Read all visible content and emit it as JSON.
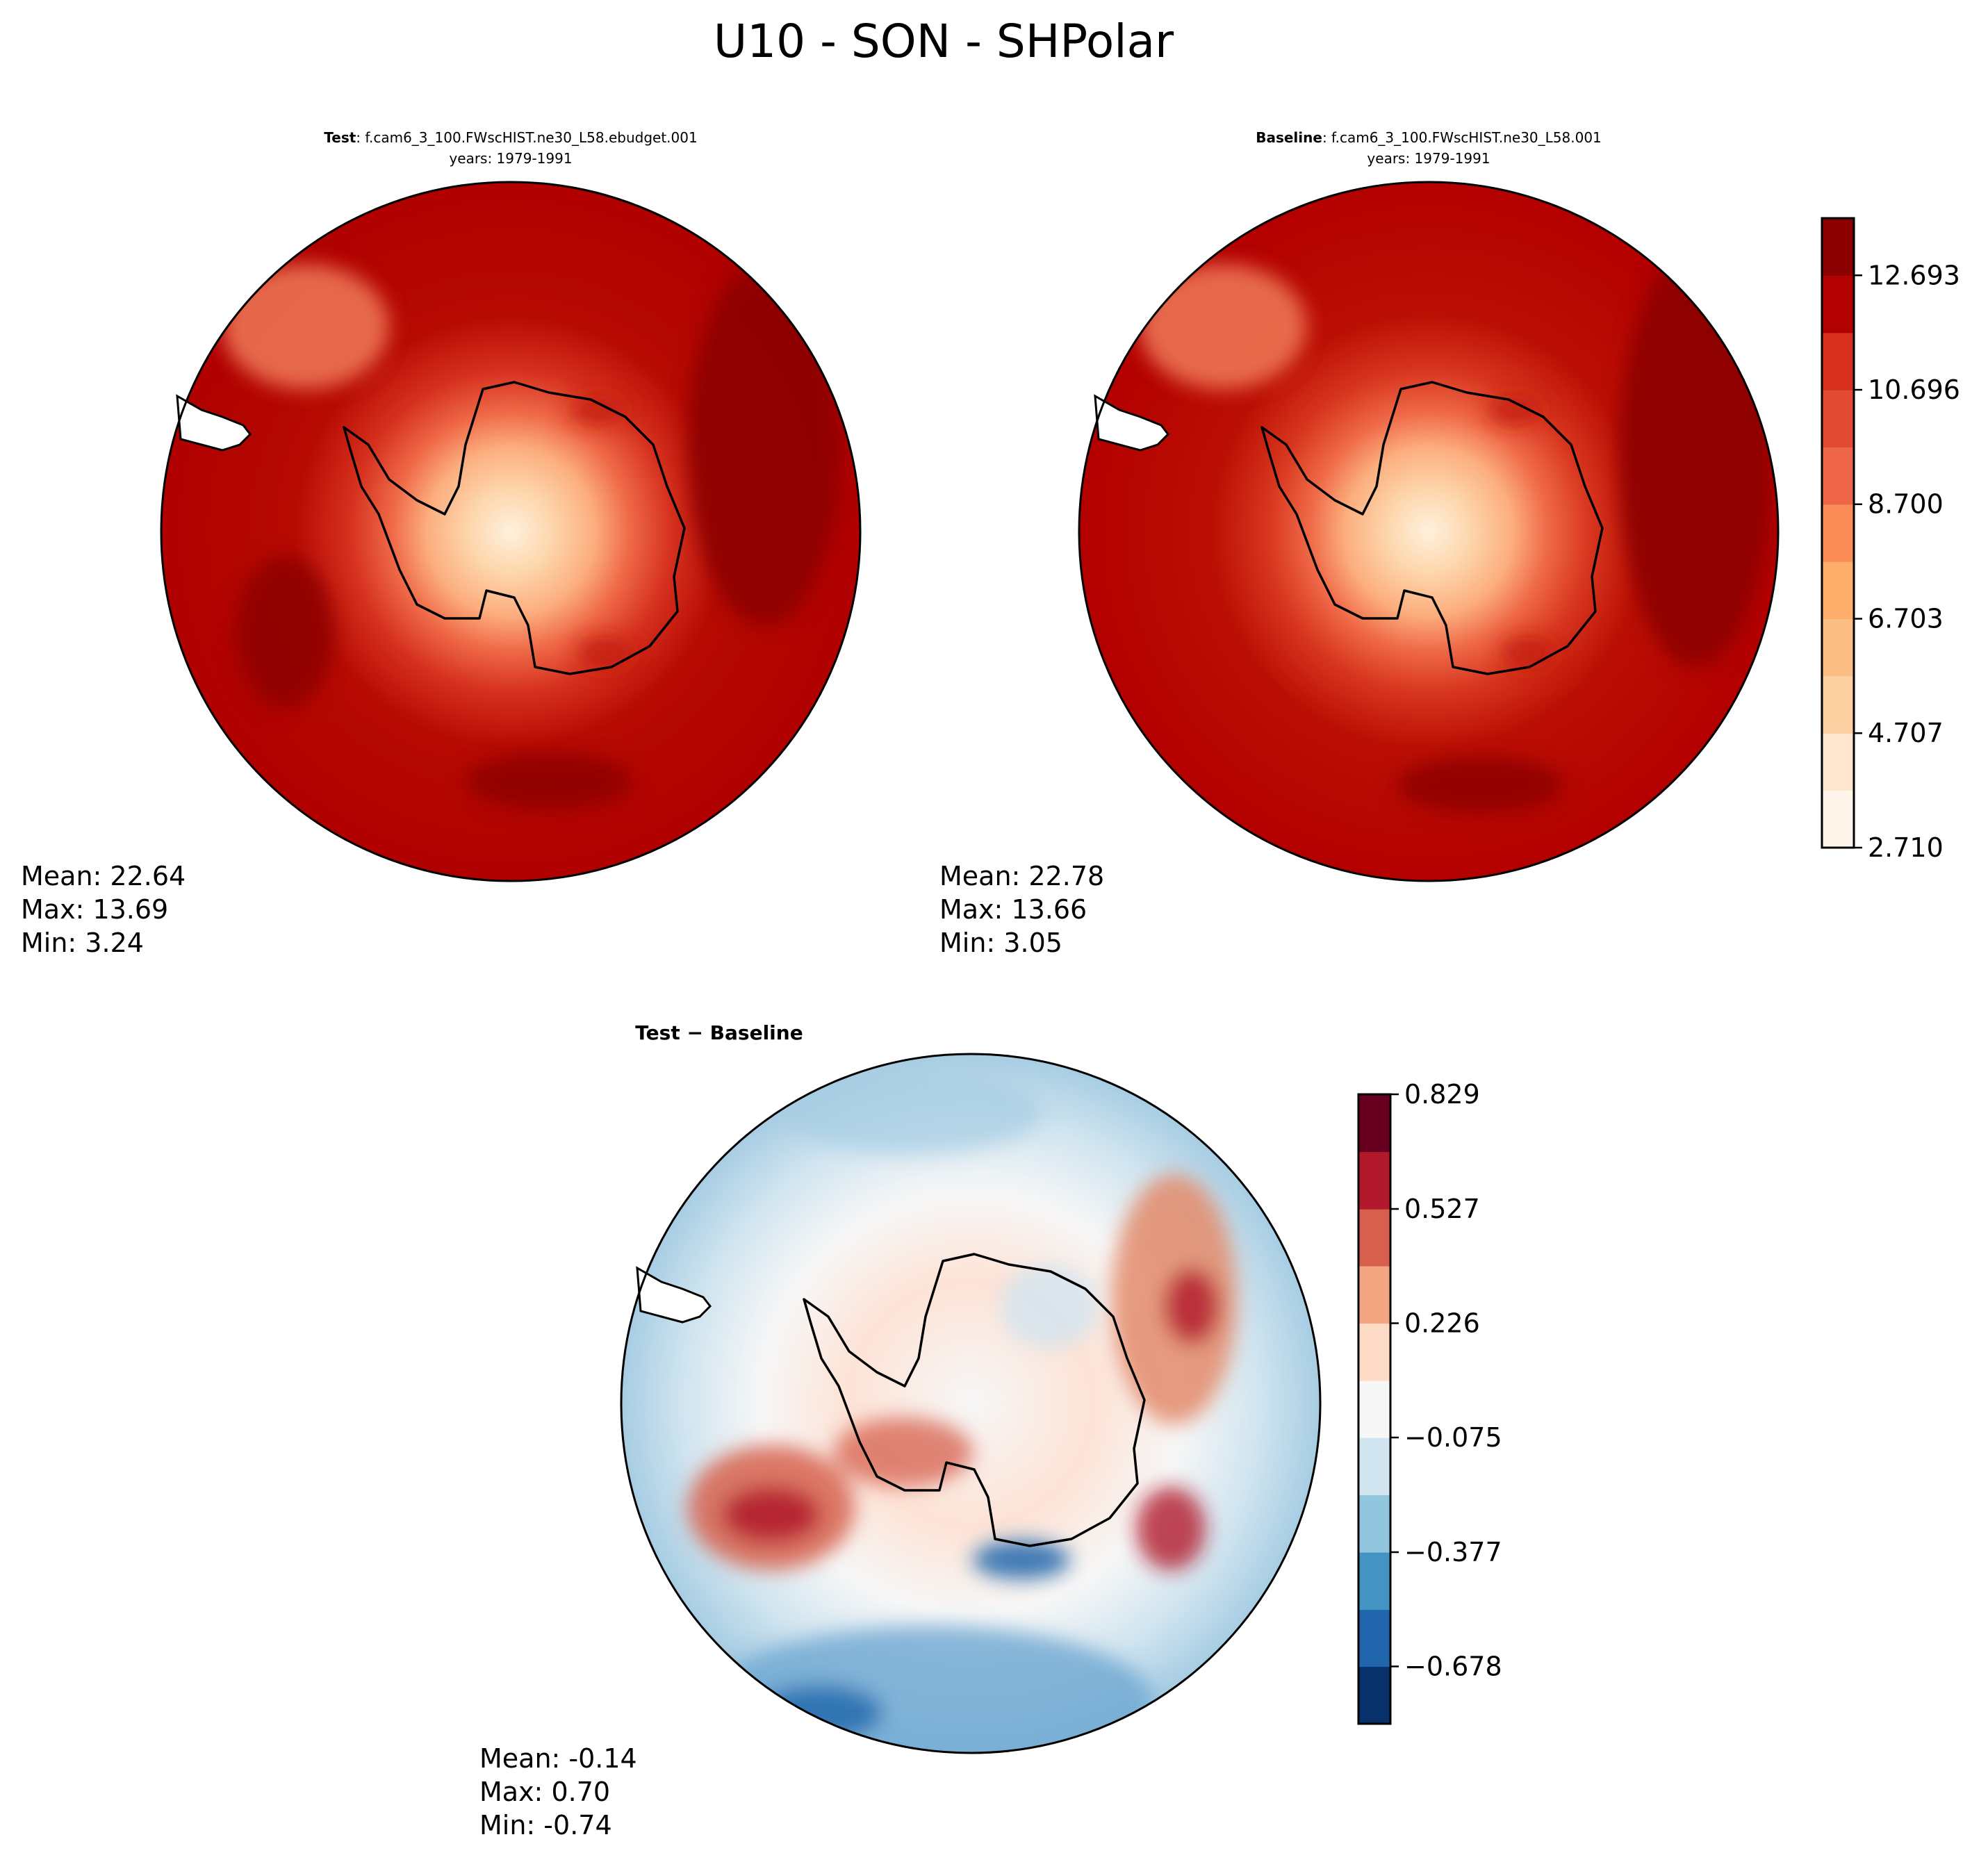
{
  "figure": {
    "title": "U10 - SON - SHPolar"
  },
  "panels": {
    "test": {
      "title_bold": "Test",
      "title_case": ": f.cam6_3_100.FWscHIST.ne30_L58.ebudget.001",
      "years": "years: 1979-1991",
      "stats": {
        "mean": "Mean: 22.64",
        "max": "Max: 13.69",
        "min": "Min:  3.24"
      }
    },
    "baseline": {
      "title_bold": "Baseline",
      "title_case": ": f.cam6_3_100.FWscHIST.ne30_L58.001",
      "years": "years: 1979-1991",
      "stats": {
        "mean": "Mean: 22.78",
        "max": "Max: 13.66",
        "min": "Min:  3.05"
      }
    },
    "diff": {
      "title": "Test − Baseline",
      "stats": {
        "mean": "Mean: -0.14",
        "max": "Max:  0.70",
        "min": "Min: -0.74"
      }
    }
  },
  "chart_data": [
    {
      "type": "heatmap",
      "projection": "south-polar-stereographic",
      "title": "Test : f.cam6_3_100.FWscHIST.ne30_L58.ebudget.001",
      "subtitle": "years: 1979-1991",
      "variable": "U10",
      "season": "SON",
      "stats": {
        "mean": 22.64,
        "max": 13.69,
        "min": 3.24
      },
      "colormap": "Reds",
      "colorbar": "shared-with-baseline"
    },
    {
      "type": "heatmap",
      "projection": "south-polar-stereographic",
      "title": "Baseline : f.cam6_3_100.FWscHIST.ne30_L58.001",
      "subtitle": "years: 1979-1991",
      "variable": "U10",
      "season": "SON",
      "stats": {
        "mean": 22.78,
        "max": 13.66,
        "min": 3.05
      },
      "colormap": "Reds",
      "colorbar": {
        "range": [
          2.71,
          13.69
        ],
        "boundaries": [
          2.71,
          3.709,
          4.707,
          5.705,
          6.703,
          7.702,
          8.7,
          9.698,
          10.696,
          11.694,
          12.693,
          13.691
        ],
        "tick_values": [
          2.71,
          4.707,
          6.703,
          8.7,
          10.696,
          12.693
        ],
        "tick_labels": [
          "2.710",
          "4.707",
          "6.703",
          "8.700",
          "10.696",
          "12.693"
        ],
        "colors": [
          "#fff5eb",
          "#fee6ce",
          "#fdd0a2",
          "#fdbe85",
          "#fdae6b",
          "#fc8d59",
          "#ef6548",
          "#e34a33",
          "#d7301f",
          "#b30000",
          "#8b0000"
        ]
      }
    },
    {
      "type": "heatmap",
      "projection": "south-polar-stereographic",
      "title": "Test − Baseline",
      "stats": {
        "mean": -0.14,
        "max": 0.7,
        "min": -0.74
      },
      "colormap": "RdBu_r",
      "colorbar": {
        "range": [
          -0.829,
          0.829
        ],
        "boundaries": [
          -0.829,
          -0.678,
          -0.528,
          -0.377,
          -0.226,
          -0.075,
          0.075,
          0.226,
          0.377,
          0.527,
          0.678,
          0.829
        ],
        "tick_values": [
          -0.678,
          -0.377,
          -0.075,
          0.226,
          0.527,
          0.829
        ],
        "tick_labels": [
          "−0.678",
          "−0.377",
          "−0.075",
          "0.226",
          "0.527",
          "0.829"
        ],
        "colors": [
          "#08306b",
          "#2166ac",
          "#4393c3",
          "#92c5de",
          "#d1e5f0",
          "#f7f7f7",
          "#fddbc7",
          "#f4a582",
          "#d6604d",
          "#b2182b",
          "#67001f"
        ]
      }
    }
  ]
}
